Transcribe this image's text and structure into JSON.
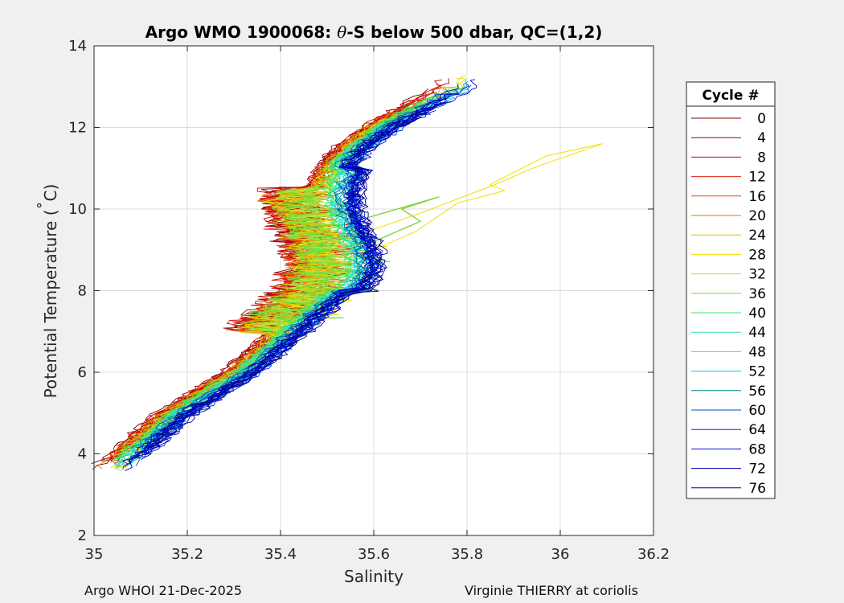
{
  "chart_data": {
    "type": "line",
    "title_prefix": "Argo WMO 1900068: ",
    "title_theta": "θ",
    "title_suffix": "-S below 500 dbar,  QC=(1,2)",
    "xlabel": "Salinity",
    "ylabel_prefix": "Potential Temperature (",
    "ylabel_degree": "˚",
    "ylabel_suffix": "C)",
    "xlim": [
      35,
      36.2
    ],
    "ylim": [
      2,
      14
    ],
    "xticks": [
      "35",
      "35.2",
      "35.4",
      "35.6",
      "35.8",
      "36",
      "36.2"
    ],
    "yticks": [
      "2",
      "4",
      "6",
      "8",
      "10",
      "12",
      "14"
    ],
    "grid": true,
    "legend_title": "Cycle #",
    "legend_position": "right-outside",
    "series": [
      {
        "name": "0",
        "color": "#7f0000"
      },
      {
        "name": "4",
        "color": "#a30000"
      },
      {
        "name": "8",
        "color": "#cc0000"
      },
      {
        "name": "12",
        "color": "#de2010"
      },
      {
        "name": "16",
        "color": "#e04a10"
      },
      {
        "name": "20",
        "color": "#d08a00"
      },
      {
        "name": "24",
        "color": "#d8c000"
      },
      {
        "name": "28",
        "color": "#f0e000"
      },
      {
        "name": "32",
        "color": "#b8e040"
      },
      {
        "name": "36",
        "color": "#70e040"
      },
      {
        "name": "40",
        "color": "#40e060"
      },
      {
        "name": "44",
        "color": "#30e0a0"
      },
      {
        "name": "48",
        "color": "#20e0e0"
      },
      {
        "name": "52",
        "color": "#10c0d8"
      },
      {
        "name": "56",
        "color": "#008098"
      },
      {
        "name": "60",
        "color": "#0050c8"
      },
      {
        "name": "64",
        "color": "#0020ff"
      },
      {
        "name": "68",
        "color": "#0010d0"
      },
      {
        "name": "72",
        "color": "#0000b0"
      },
      {
        "name": "76",
        "color": "#000090"
      }
    ]
  },
  "footer": {
    "left": "Argo WHOI 21-Dec-2025",
    "right": "Virginie THIERRY at coriolis"
  }
}
